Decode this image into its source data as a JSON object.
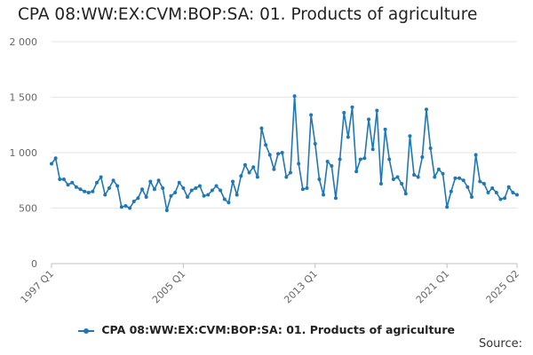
{
  "title": "CPA 08:WW:EX:CVM:BOP:SA: 01. Products of agriculture",
  "source_label": "Source:",
  "colors": {
    "series": "#1f77b4",
    "grid": "#e6e6e6",
    "axis": "#c0c0c0",
    "text": "#666666"
  },
  "chart_data": {
    "type": "line",
    "title": "CPA 08:WW:EX:CVM:BOP:SA: 01. Products of agriculture",
    "xlabel": "",
    "ylabel": "",
    "ylim": [
      0,
      2000
    ],
    "y_ticks": [
      0,
      500,
      1000,
      1500,
      2000
    ],
    "y_tick_labels": [
      "0",
      "500",
      "1 000",
      "1 500",
      "2 000"
    ],
    "x_tick_labels": [
      "1997 Q1",
      "2005 Q1",
      "2013 Q1",
      "2021 Q1",
      "2025 Q2"
    ],
    "grid": true,
    "legend_position": "bottom",
    "series": [
      {
        "name": "CPA 08:WW:EX:CVM:BOP:SA: 01. Products of agriculture",
        "x_start": "1997 Q1",
        "frequency": "quarterly",
        "values": [
          900,
          950,
          760,
          760,
          710,
          730,
          690,
          670,
          650,
          640,
          650,
          730,
          780,
          620,
          680,
          750,
          700,
          510,
          520,
          500,
          560,
          590,
          670,
          600,
          740,
          670,
          750,
          680,
          480,
          610,
          640,
          730,
          680,
          600,
          660,
          680,
          700,
          610,
          620,
          660,
          700,
          660,
          580,
          550,
          740,
          620,
          790,
          890,
          820,
          870,
          780,
          1220,
          1070,
          980,
          850,
          990,
          1000,
          780,
          820,
          1510,
          900,
          670,
          680,
          1340,
          1080,
          760,
          620,
          920,
          880,
          590,
          940,
          1360,
          1140,
          1410,
          830,
          940,
          950,
          1300,
          1030,
          1380,
          720,
          1210,
          940,
          760,
          780,
          720,
          630,
          1150,
          800,
          780,
          960,
          1390,
          1040,
          780,
          850,
          810,
          510,
          650,
          770,
          770,
          750,
          690,
          600,
          980,
          740,
          720,
          640,
          680,
          640,
          580,
          590,
          690,
          640,
          620
        ]
      }
    ]
  }
}
